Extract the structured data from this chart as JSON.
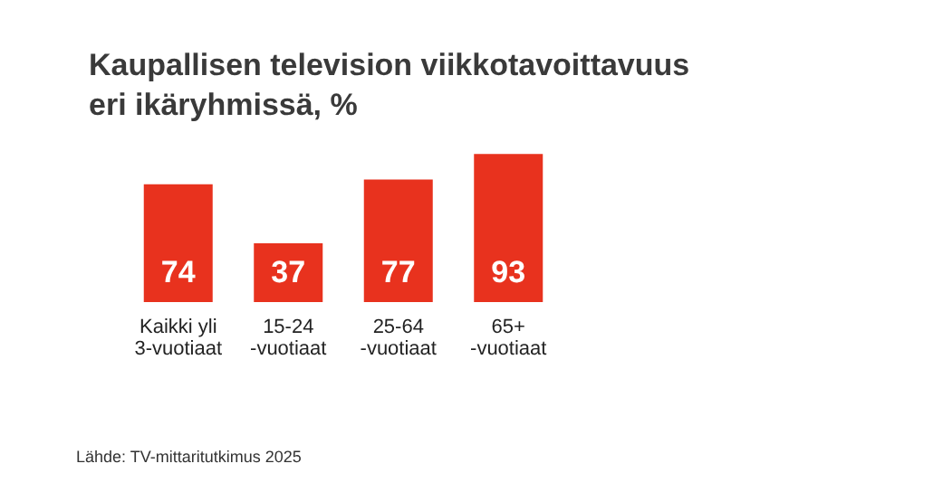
{
  "chart_data": {
    "type": "bar",
    "title": "Kaupallisen television viikkotavoittavuus\neri ikäryhmissä, %",
    "categories": [
      "Kaikki yli\n3-vuotiaat",
      "15-24\n-vuotiaat",
      "25-64\n-vuotiaat",
      "65+\n-vuotiaat"
    ],
    "values": [
      74,
      37,
      77,
      93
    ],
    "color": "#e8321e",
    "data_labels": true,
    "annotations": [
      "Lähde: TV-mittaritutkimus 2025"
    ]
  }
}
